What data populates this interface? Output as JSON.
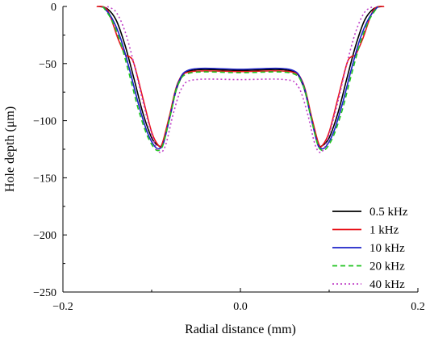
{
  "chart_data": {
    "type": "line",
    "title": "",
    "xlabel": "Radial distance (mm)",
    "ylabel": "Hole depth (μm)",
    "xlim": [
      -0.2,
      0.2
    ],
    "ylim": [
      -250,
      0
    ],
    "xticks": [
      -0.2,
      0.0,
      0.2
    ],
    "xtick_labels": [
      "−0.2",
      "0.0",
      "0.2"
    ],
    "yticks": [
      0,
      -50,
      -100,
      -150,
      -200,
      -250
    ],
    "ytick_labels": [
      "0",
      "−50",
      "−100",
      "−150",
      "−200",
      "−250"
    ],
    "grid": false,
    "legend_position": "bottom-right",
    "series": [
      {
        "name": "0.5 kHz",
        "color": "#000000",
        "dash": "solid",
        "x": [
          -0.16,
          -0.15,
          -0.14,
          -0.13,
          -0.12,
          -0.11,
          -0.1,
          -0.092,
          -0.088,
          -0.08,
          -0.07,
          -0.055,
          0.0,
          0.055,
          0.07,
          0.08,
          0.088,
          0.092,
          0.1,
          0.11,
          0.12,
          0.13,
          0.14,
          0.15,
          0.16
        ],
        "y": [
          0,
          -2,
          -12,
          -34,
          -63,
          -93,
          -115,
          -122,
          -120,
          -98,
          -68,
          -56,
          -56,
          -56,
          -68,
          -98,
          -120,
          -122,
          -115,
          -93,
          -63,
          -34,
          -12,
          -2,
          0
        ]
      },
      {
        "name": "1 kHz",
        "color": "#e8141b",
        "dash": "solid",
        "x": [
          -0.162,
          -0.15,
          -0.138,
          -0.13,
          -0.125,
          -0.12,
          -0.11,
          -0.1,
          -0.092,
          -0.088,
          -0.08,
          -0.07,
          -0.055,
          0.0,
          0.055,
          0.07,
          0.08,
          0.088,
          0.092,
          0.1,
          0.11,
          0.12,
          0.125,
          0.13,
          0.138,
          0.15,
          0.162
        ],
        "y": [
          0,
          -3,
          -28,
          -42,
          -44,
          -50,
          -80,
          -110,
          -122,
          -120,
          -96,
          -66,
          -57,
          -57,
          -57,
          -66,
          -96,
          -120,
          -122,
          -110,
          -80,
          -50,
          -44,
          -42,
          -28,
          -3,
          0
        ]
      },
      {
        "name": "10 kHz",
        "color": "#1c22c8",
        "dash": "solid",
        "x": [
          -0.155,
          -0.145,
          -0.135,
          -0.125,
          -0.115,
          -0.105,
          -0.096,
          -0.09,
          -0.086,
          -0.078,
          -0.07,
          -0.055,
          0.0,
          0.055,
          0.07,
          0.078,
          0.086,
          0.09,
          0.096,
          0.105,
          0.115,
          0.125,
          0.135,
          0.145,
          0.155
        ],
        "y": [
          0,
          -10,
          -28,
          -55,
          -85,
          -110,
          -123,
          -124,
          -118,
          -92,
          -67,
          -55,
          -55,
          -55,
          -67,
          -92,
          -118,
          -124,
          -123,
          -110,
          -85,
          -55,
          -28,
          -10,
          0
        ]
      },
      {
        "name": "20 kHz",
        "color": "#1fc41f",
        "dash": "dashed",
        "x": [
          -0.155,
          -0.145,
          -0.135,
          -0.125,
          -0.115,
          -0.105,
          -0.096,
          -0.09,
          -0.086,
          -0.078,
          -0.07,
          -0.055,
          0.0,
          0.055,
          0.07,
          0.078,
          0.086,
          0.09,
          0.096,
          0.105,
          0.115,
          0.125,
          0.135,
          0.145,
          0.155
        ],
        "y": [
          0,
          -12,
          -32,
          -60,
          -90,
          -113,
          -125,
          -125,
          -118,
          -92,
          -68,
          -58,
          -58,
          -58,
          -68,
          -92,
          -118,
          -125,
          -125,
          -113,
          -90,
          -60,
          -32,
          -12,
          0
        ]
      },
      {
        "name": "40 kHz",
        "color": "#c040c8",
        "dash": "dotted",
        "x": [
          -0.15,
          -0.14,
          -0.13,
          -0.12,
          -0.11,
          -0.1,
          -0.093,
          -0.088,
          -0.083,
          -0.075,
          -0.065,
          -0.05,
          0.0,
          0.05,
          0.065,
          0.075,
          0.083,
          0.088,
          0.093,
          0.1,
          0.11,
          0.12,
          0.13,
          0.14,
          0.15
        ],
        "y": [
          0,
          -5,
          -22,
          -50,
          -83,
          -112,
          -126,
          -127,
          -118,
          -92,
          -70,
          -64,
          -64,
          -64,
          -70,
          -92,
          -118,
          -127,
          -126,
          -112,
          -83,
          -50,
          -22,
          -5,
          0
        ]
      }
    ]
  }
}
